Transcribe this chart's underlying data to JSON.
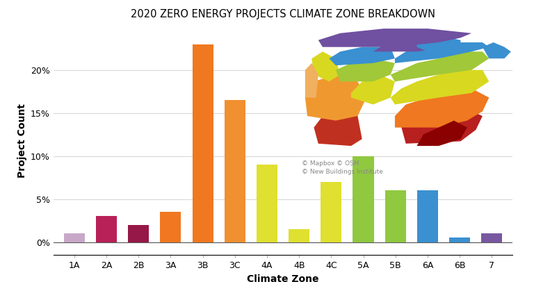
{
  "categories": [
    "1A",
    "2A",
    "2B",
    "3A",
    "3B",
    "3C",
    "4A",
    "4B",
    "4C",
    "5A",
    "5B",
    "6A",
    "6B",
    "7"
  ],
  "values": [
    1.0,
    3.0,
    2.0,
    3.5,
    23.0,
    16.5,
    9.0,
    1.5,
    7.0,
    10.0,
    6.0,
    6.0,
    0.5,
    1.0
  ],
  "bar_colors": [
    "#c8a8c8",
    "#b82058",
    "#961848",
    "#f07820",
    "#f07820",
    "#f09030",
    "#e0e030",
    "#e0e030",
    "#e0e030",
    "#90c840",
    "#90c840",
    "#3a90d0",
    "#3a90d0",
    "#7858a0"
  ],
  "title": "2020 ZERO ENERGY PROJECTS CLIMATE ZONE BREAKDOWN",
  "xlabel": "Climate Zone",
  "ylabel": "Project Count",
  "ylim": [
    -1.5,
    25
  ],
  "yticks": [
    0,
    5,
    10,
    15,
    20
  ],
  "yticklabels": [
    "0%",
    "5%",
    "10%",
    "15%",
    "20%"
  ],
  "background_color": "#ffffff",
  "grid_color": "#d8d8d8",
  "title_fontsize": 10.5,
  "axis_fontsize": 10,
  "tick_fontsize": 9,
  "copyright_text": "© Mapbox © OSM\n© New Buildings Institute"
}
